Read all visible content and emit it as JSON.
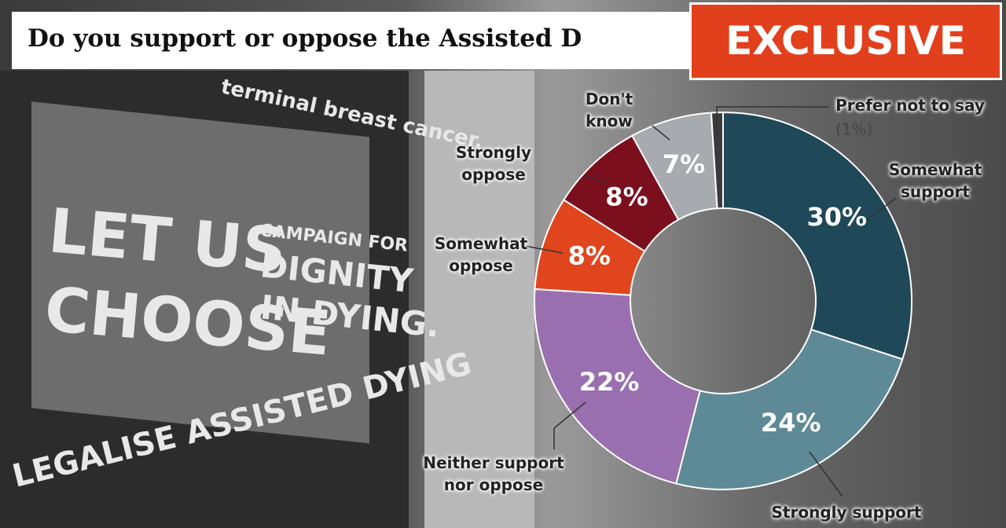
{
  "chart_data": {
    "type": "donut",
    "title": "Do you support or oppose the Assisted D",
    "badge": "EXCLUSIVE",
    "categories": [
      "Somewhat support",
      "Strongly support",
      "Neither support nor oppose",
      "Somewhat oppose",
      "Strongly oppose",
      "Don't know",
      "Prefer not to say"
    ],
    "values": [
      30,
      24,
      22,
      8,
      8,
      7,
      1
    ],
    "value_labels": [
      "30%",
      "24%",
      "22%",
      "8%",
      "8%",
      "7%",
      "(1%)"
    ],
    "colors": [
      "#1f4858",
      "#5e8a97",
      "#9a6fb0",
      "#e0451d",
      "#7c0f1e",
      "#a7abb0",
      "#3b3b3b"
    ]
  },
  "background": {
    "poster_lines": [
      "LET US",
      "CHOOSE",
      "CAMPAIGN FOR",
      "DIGNITY",
      "IN DYING.",
      "LEGALISE ASSISTED DYING",
      "terminal breast cancer."
    ]
  }
}
